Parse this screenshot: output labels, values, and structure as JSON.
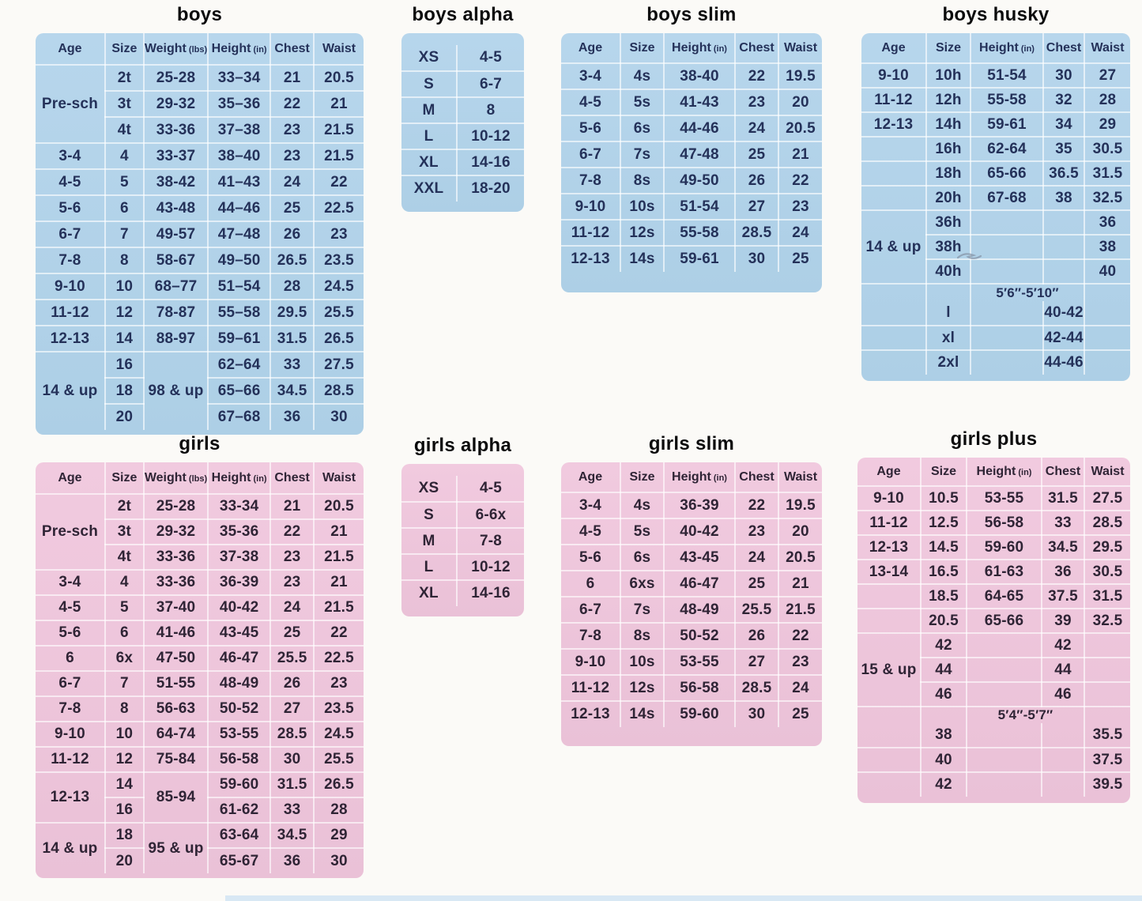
{
  "colors": {
    "page_background": "#fbfaf7",
    "blue_table_bg": "#b2d2e9",
    "pink_table_bg": "#eec6db",
    "blue_text": "#243159",
    "pink_text": "#2f2435",
    "grid_line": "#ffffff",
    "bottom_strip": "#d8e8f4"
  },
  "tables": {
    "boys": {
      "title": "boys",
      "header": [
        {
          "t": "Age"
        },
        {
          "t": "Size"
        },
        {
          "t": "Weight",
          "unit": "(lbs)"
        },
        {
          "t": "Height",
          "unit": "(in)"
        },
        {
          "t": "Chest"
        },
        {
          "t": "Waist"
        }
      ],
      "rows": [
        [
          {
            "t": "Pre-sch",
            "rs": 3
          },
          "2t",
          "25-28",
          "33–34",
          "21",
          "20.5"
        ],
        [
          "3t",
          "29-32",
          "35–36",
          "22",
          "21"
        ],
        [
          "4t",
          "33-36",
          "37–38",
          "23",
          "21.5"
        ],
        [
          "3-4",
          "4",
          "33-37",
          "38–40",
          "23",
          "21.5"
        ],
        [
          "4-5",
          "5",
          "38-42",
          "41–43",
          "24",
          "22"
        ],
        [
          "5-6",
          "6",
          "43-48",
          "44–46",
          "25",
          "22.5"
        ],
        [
          "6-7",
          "7",
          "49-57",
          "47–48",
          "26",
          "23"
        ],
        [
          "7-8",
          "8",
          "58-67",
          "49–50",
          "26.5",
          "23.5"
        ],
        [
          "9-10",
          "10",
          "68–77",
          "51–54",
          "28",
          "24.5"
        ],
        [
          "11-12",
          "12",
          "78-87",
          "55–58",
          "29.5",
          "25.5"
        ],
        [
          "12-13",
          "14",
          "88-97",
          "59–61",
          "31.5",
          "26.5"
        ],
        [
          {
            "t": "14 & up",
            "rs": 3
          },
          "16",
          {
            "t": "98 & up",
            "rs": 3
          },
          "62–64",
          "33",
          "27.5"
        ],
        [
          "18",
          "65–66",
          "34.5",
          "28.5"
        ],
        [
          "20",
          "67–68",
          "36",
          "30"
        ]
      ]
    },
    "boys_alpha": {
      "title": "boys alpha",
      "rows": [
        [
          "XS",
          "4-5"
        ],
        [
          "S",
          "6-7"
        ],
        [
          "M",
          "8"
        ],
        [
          "L",
          "10-12"
        ],
        [
          "XL",
          "14-16"
        ],
        [
          "XXL",
          "18-20"
        ]
      ]
    },
    "boys_slim": {
      "title": "boys slim",
      "header": [
        {
          "t": "Age"
        },
        {
          "t": "Size"
        },
        {
          "t": "Height",
          "unit": "(in)"
        },
        {
          "t": "Chest"
        },
        {
          "t": "Waist"
        }
      ],
      "rows": [
        [
          "3-4",
          "4s",
          "38-40",
          "22",
          "19.5"
        ],
        [
          "4-5",
          "5s",
          "41-43",
          "23",
          "20"
        ],
        [
          "5-6",
          "6s",
          "44-46",
          "24",
          "20.5"
        ],
        [
          "6-7",
          "7s",
          "47-48",
          "25",
          "21"
        ],
        [
          "7-8",
          "8s",
          "49-50",
          "26",
          "22"
        ],
        [
          "9-10",
          "10s",
          "51-54",
          "27",
          "23"
        ],
        [
          "11-12",
          "12s",
          "55-58",
          "28.5",
          "24"
        ],
        [
          "12-13",
          "14s",
          "59-61",
          "30",
          "25"
        ]
      ]
    },
    "boys_husky": {
      "title": "boys husky",
      "header": [
        {
          "t": "Age"
        },
        {
          "t": "Size"
        },
        {
          "t": "Height",
          "unit": "(in)"
        },
        {
          "t": "Chest"
        },
        {
          "t": "Waist"
        }
      ],
      "rows": [
        [
          "9-10",
          "10h",
          "51-54",
          "30",
          "27"
        ],
        [
          "11-12",
          "12h",
          "55-58",
          "32",
          "28"
        ],
        [
          "12-13",
          "14h",
          "59-61",
          "34",
          "29"
        ],
        [
          "",
          "16h",
          "62-64",
          "35",
          "30.5"
        ],
        [
          "",
          "18h",
          "65-66",
          "36.5",
          "31.5"
        ],
        [
          "",
          "20h",
          "67-68",
          "38",
          "32.5"
        ],
        [
          {
            "t": "14 & up",
            "rs": 3
          },
          "36h",
          "",
          "",
          "36"
        ],
        [
          "38h",
          "",
          "",
          "38"
        ],
        [
          "40h",
          "",
          "",
          "40"
        ],
        {
          "h": 22,
          "nob": true,
          "cells": [
            "",
            "",
            {
              "t": "5′6″-5′10″",
              "cls": "range",
              "cs": 2
            },
            ""
          ]
        },
        [
          "",
          "l",
          "",
          "40-42",
          ""
        ],
        [
          "",
          "xl",
          "",
          "42-44",
          ""
        ],
        [
          "",
          "2xl",
          "",
          "44-46",
          ""
        ]
      ]
    },
    "girls": {
      "title": "girls",
      "header": [
        {
          "t": "Age"
        },
        {
          "t": "Size"
        },
        {
          "t": "Weight",
          "unit": "(lbs)"
        },
        {
          "t": "Height",
          "unit": "(in)"
        },
        {
          "t": "Chest"
        },
        {
          "t": "Waist"
        }
      ],
      "rows": [
        [
          {
            "t": "Pre-sch",
            "rs": 3
          },
          "2t",
          "25-28",
          "33-34",
          "21",
          "20.5"
        ],
        [
          "3t",
          "29-32",
          "35-36",
          "22",
          "21"
        ],
        [
          "4t",
          "33-36",
          "37-38",
          "23",
          "21.5"
        ],
        [
          "3-4",
          "4",
          "33-36",
          "36-39",
          "23",
          "21"
        ],
        [
          "4-5",
          "5",
          "37-40",
          "40-42",
          "24",
          "21.5"
        ],
        [
          "5-6",
          "6",
          "41-46",
          "43-45",
          "25",
          "22"
        ],
        [
          "6",
          "6x",
          "47-50",
          "46-47",
          "25.5",
          "22.5"
        ],
        [
          "6-7",
          "7",
          "51-55",
          "48-49",
          "26",
          "23"
        ],
        [
          "7-8",
          "8",
          "56-63",
          "50-52",
          "27",
          "23.5"
        ],
        [
          "9-10",
          "10",
          "64-74",
          "53-55",
          "28.5",
          "24.5"
        ],
        [
          "11-12",
          "12",
          "75-84",
          "56-58",
          "30",
          "25.5"
        ],
        [
          {
            "t": "12-13",
            "rs": 2
          },
          "14",
          {
            "t": "85-94",
            "rs": 2
          },
          "59-60",
          "31.5",
          "26.5"
        ],
        [
          "16",
          "61-62",
          "33",
          "28"
        ],
        [
          {
            "t": "14 & up",
            "rs": 2
          },
          "18",
          {
            "t": "95 & up",
            "rs": 2
          },
          "63-64",
          "34.5",
          "29"
        ],
        [
          "20",
          "65-67",
          "36",
          "30"
        ]
      ]
    },
    "girls_alpha": {
      "title": "girls alpha",
      "rows": [
        [
          "XS",
          "4-5"
        ],
        [
          "S",
          "6-6x"
        ],
        [
          "M",
          "7-8"
        ],
        [
          "L",
          "10-12"
        ],
        [
          "XL",
          "14-16"
        ]
      ]
    },
    "girls_slim": {
      "title": "girls slim",
      "header": [
        {
          "t": "Age"
        },
        {
          "t": "Size"
        },
        {
          "t": "Height",
          "unit": "(in)"
        },
        {
          "t": "Chest"
        },
        {
          "t": "Waist"
        }
      ],
      "rows": [
        [
          "3-4",
          "4s",
          "36-39",
          "22",
          "19.5"
        ],
        [
          "4-5",
          "5s",
          "40-42",
          "23",
          "20"
        ],
        [
          "5-6",
          "6s",
          "43-45",
          "24",
          "20.5"
        ],
        [
          "6",
          "6xs",
          "46-47",
          "25",
          "21"
        ],
        [
          "6-7",
          "7s",
          "48-49",
          "25.5",
          "21.5"
        ],
        [
          "7-8",
          "8s",
          "50-52",
          "26",
          "22"
        ],
        [
          "9-10",
          "10s",
          "53-55",
          "27",
          "23"
        ],
        [
          "11-12",
          "12s",
          "56-58",
          "28.5",
          "24"
        ],
        [
          "12-13",
          "14s",
          "59-60",
          "30",
          "25"
        ]
      ]
    },
    "girls_plus": {
      "title": "girls plus",
      "header": [
        {
          "t": "Age"
        },
        {
          "t": "Size"
        },
        {
          "t": "Height",
          "unit": "(in)"
        },
        {
          "t": "Chest"
        },
        {
          "t": "Waist"
        }
      ],
      "rows": [
        [
          "9-10",
          "10.5",
          "53-55",
          "31.5",
          "27.5"
        ],
        [
          "11-12",
          "12.5",
          "56-58",
          "33",
          "28.5"
        ],
        [
          "12-13",
          "14.5",
          "59-60",
          "34.5",
          "29.5"
        ],
        [
          "13-14",
          "16.5",
          "61-63",
          "36",
          "30.5"
        ],
        [
          "",
          "18.5",
          "64-65",
          "37.5",
          "31.5"
        ],
        [
          "",
          "20.5",
          "65-66",
          "39",
          "32.5"
        ],
        [
          {
            "t": "15 & up",
            "rs": 3
          },
          "42",
          "",
          "42",
          ""
        ],
        [
          "44",
          "",
          "44",
          ""
        ],
        [
          "46",
          "",
          "46",
          ""
        ],
        {
          "h": 20,
          "nob": true,
          "cells": [
            "",
            "",
            {
              "t": "5′4″-5′7″",
              "cls": "range",
              "cs": 2
            },
            ""
          ]
        },
        [
          "",
          "38",
          "",
          "",
          "35.5"
        ],
        [
          "",
          "40",
          "",
          "",
          "37.5"
        ],
        [
          "",
          "42",
          "",
          "",
          "39.5"
        ]
      ]
    }
  }
}
